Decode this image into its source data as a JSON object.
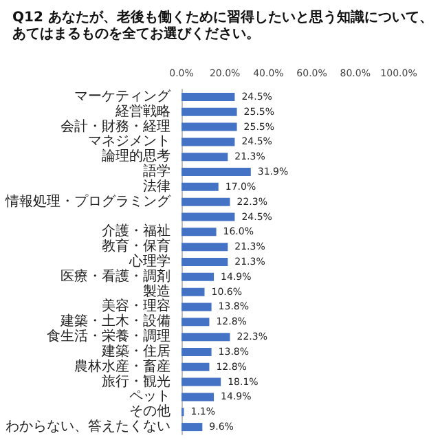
{
  "chart_data": {
    "type": "bar",
    "orientation": "horizontal",
    "title": "Q12 あなたが、老後も働くために習得したいと思う知識について、あてはまるものを全てお選びください。",
    "categories": [
      "マーケティング",
      "経営戦略",
      "会計・財務・経理",
      "マネジメント",
      "論理的思考",
      "語学",
      "法律",
      "情報処理・プログラミング",
      null,
      "介護・福祉",
      "教育・保育",
      "心理学",
      "医療・看護・調剤",
      "製造",
      "美容・理容",
      "建築・土木・設備",
      "食生活・栄養・調理",
      "建築・住居",
      "農林水産・畜産",
      "旅行・観光",
      "ペット",
      "その他",
      "わからない、答えたくない"
    ],
    "values": [
      24.5,
      25.5,
      25.5,
      24.5,
      21.3,
      31.9,
      17.0,
      22.3,
      24.5,
      16.0,
      21.3,
      21.3,
      14.9,
      10.6,
      13.8,
      12.8,
      22.3,
      13.8,
      12.8,
      18.1,
      14.9,
      1.1,
      9.6
    ],
    "value_labels": [
      "24.5%",
      "25.5%",
      "25.5%",
      "24.5%",
      "21.3%",
      "31.9%",
      "17.0%",
      "22.3%",
      "24.5%",
      "16.0%",
      "21.3%",
      "21.3%",
      "14.9%",
      "10.6%",
      "13.8%",
      "12.8%",
      "22.3%",
      "13.8%",
      "12.8%",
      "18.1%",
      "14.9%",
      "1.1%",
      "9.6%"
    ],
    "color": "#4472c4",
    "xlim": [
      0,
      100
    ],
    "xticks": [
      {
        "value": 0,
        "label": "0.0%"
      },
      {
        "value": 20,
        "label": "20.0%"
      },
      {
        "value": 40,
        "label": "40.0%"
      },
      {
        "value": 60,
        "label": "60.0%"
      },
      {
        "value": 80,
        "label": "80.0%"
      },
      {
        "value": 100,
        "label": "100.0%"
      }
    ],
    "grid": false
  }
}
